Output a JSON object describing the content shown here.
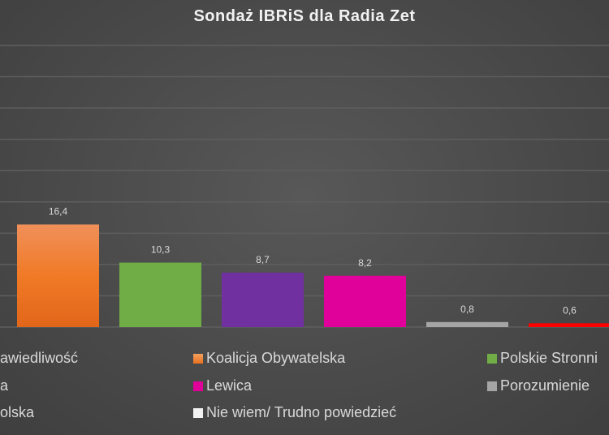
{
  "chart_data": {
    "type": "bar",
    "title": "Sondaż IBRiS dla Radia Zet",
    "xlabel": "",
    "ylabel": "",
    "ylim": [
      0,
      45
    ],
    "grid": true,
    "legend_placement": "bottom",
    "categories": [
      "Koalicja Obywatelska",
      "Polskie Stronnictwo",
      "a",
      "Lewica",
      "Porozumienie",
      "olska"
    ],
    "values": [
      16.4,
      10.3,
      8.7,
      8.2,
      0.8,
      0.6
    ],
    "value_labels": [
      "16,4",
      "10,3",
      "8,7",
      "8,2",
      "0,8",
      "0,6"
    ],
    "colors": [
      "#ed7d31",
      "#70ad47",
      "#7030a0",
      "#e0009a",
      "#a5a5a5",
      "#ff0000"
    ]
  },
  "legend": [
    {
      "label": "awiedliwość",
      "color": "#4472c4"
    },
    {
      "label": "Koalicja Obywatelska",
      "color": "#ed7d31"
    },
    {
      "label": "Polskie Stronni",
      "color": "#70ad47"
    },
    {
      "label": "a",
      "color": "#7030a0"
    },
    {
      "label": "Lewica",
      "color": "#e0009a"
    },
    {
      "label": "Porozumienie",
      "color": "#a5a5a5"
    },
    {
      "label": "olska",
      "color": "#ff0000"
    },
    {
      "label": "Nie wiem/ Trudno powiedzieć",
      "color": "#f2f2f2"
    }
  ]
}
